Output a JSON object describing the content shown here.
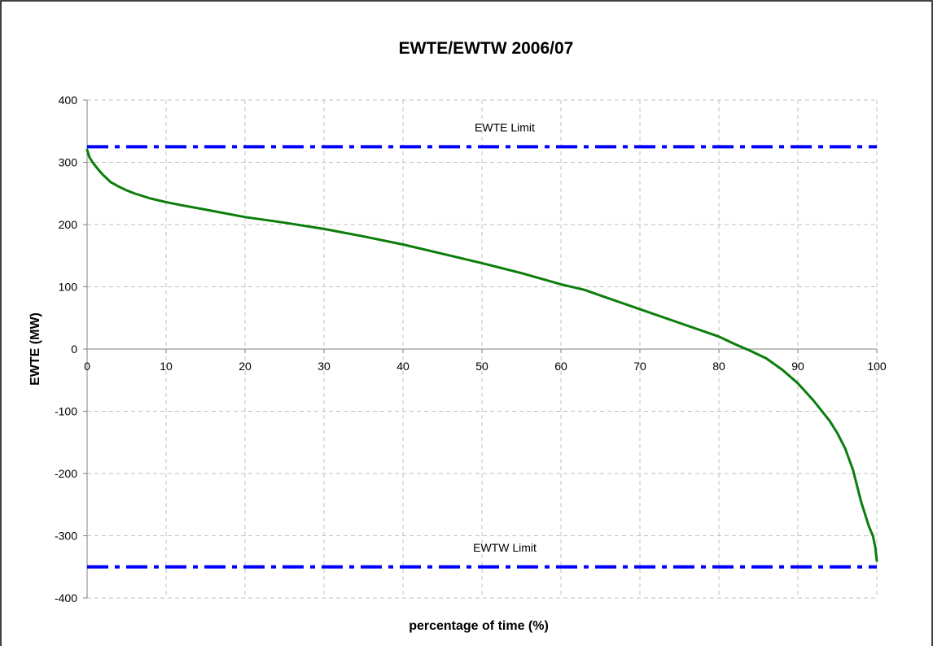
{
  "chart_data": {
    "type": "line",
    "title": "EWTE/EWTW 2006/07",
    "xlabel": "percentage of time (%)",
    "ylabel": "EWTE (MW)",
    "xlim": [
      0,
      100
    ],
    "ylim": [
      -400,
      400
    ],
    "x_ticks": [
      "0",
      "10",
      "20",
      "30",
      "40",
      "50",
      "60",
      "70",
      "80",
      "90",
      "100"
    ],
    "y_ticks": [
      "400",
      "300",
      "200",
      "100",
      "0",
      "-100",
      "-200",
      "-300",
      "-400"
    ],
    "grid": true,
    "line_color": "#0a7d0a",
    "limit_color": "#0000ff",
    "series": [
      {
        "x": [
          0,
          0.3,
          0.7,
          1,
          1.5,
          2,
          2.5,
          3,
          4,
          5,
          6,
          8,
          10,
          12,
          15,
          20,
          25,
          30,
          35,
          40,
          45,
          50,
          55,
          60,
          63,
          65,
          70,
          75,
          80,
          82,
          84,
          86,
          88,
          90,
          92,
          94,
          95,
          96,
          97,
          98,
          98.5,
          99,
          99.5,
          99.8,
          100
        ],
        "y": [
          320,
          308,
          300,
          295,
          287,
          280,
          274,
          268,
          261,
          255,
          250,
          242,
          236,
          231,
          224,
          212,
          203,
          193,
          181,
          168,
          153,
          138,
          122,
          104,
          95,
          86,
          64,
          42,
          20,
          8,
          -3,
          -15,
          -33,
          -55,
          -83,
          -115,
          -135,
          -160,
          -195,
          -245,
          -265,
          -285,
          -300,
          -318,
          -340
        ]
      }
    ],
    "reference_lines": [
      {
        "label": "EWTE Limit",
        "y": 325
      },
      {
        "label": "EWTW Limit",
        "y": -350
      }
    ]
  }
}
